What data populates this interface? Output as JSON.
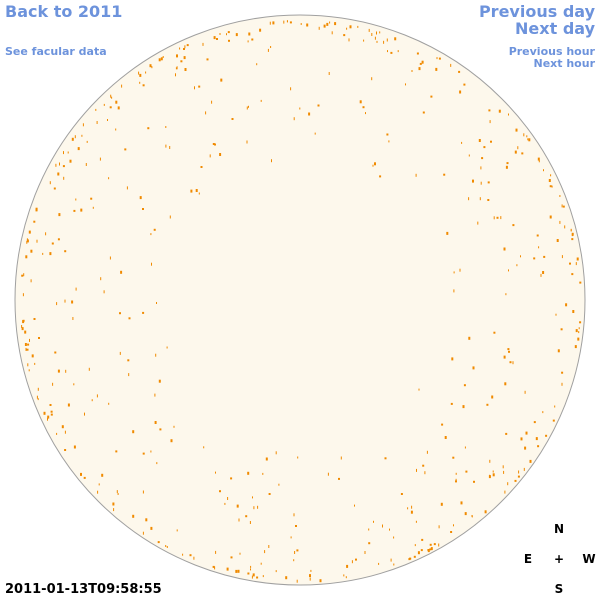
{
  "links": {
    "back": "Back to 2011",
    "facular": "See facular data",
    "previous_day": "Previous day",
    "next_day": "Next day",
    "previous_hour": "Previous hour",
    "next_hour": "Next hour"
  },
  "timestamp": "2011-01-13T09:58:55",
  "compass": {
    "north": "N",
    "east": "E",
    "center": "+",
    "west": "W",
    "south": "S"
  }
}
